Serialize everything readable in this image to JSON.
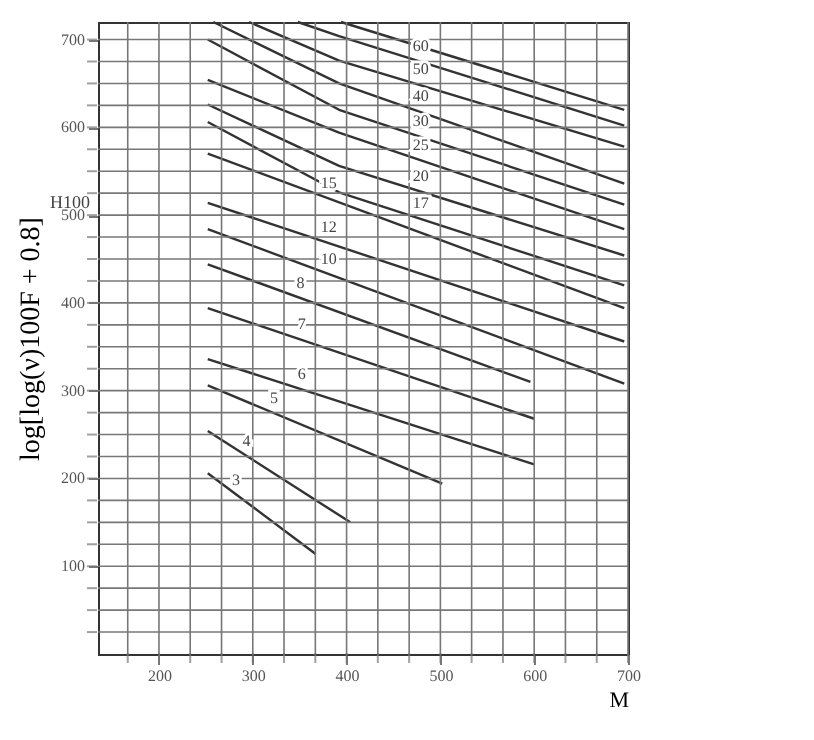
{
  "chart_data": {
    "type": "line",
    "xlabel": "M",
    "ylabel": "log[log(ν)100F + 0.8]",
    "annotations": [
      "H100"
    ],
    "xlim": [
      135,
      700
    ],
    "ylim": [
      0,
      720
    ],
    "xticks": [
      {
        "value": 166.7,
        "label": null
      },
      200,
      {
        "value": 233.3,
        "label": null
      },
      {
        "value": 266.7,
        "label": null
      },
      300,
      {
        "value": 333.3,
        "label": null
      },
      {
        "value": 366.7,
        "label": null
      },
      400,
      {
        "value": 433.3,
        "label": null
      },
      {
        "value": 466.7,
        "label": null
      },
      500,
      {
        "value": 533.3,
        "label": null
      },
      {
        "value": 566.7,
        "label": null
      },
      600,
      {
        "value": 633.3,
        "label": null
      },
      {
        "value": 666.7,
        "label": null
      },
      700
    ],
    "yticks": [
      {
        "value": 25,
        "label": null
      },
      {
        "value": 50,
        "label": null
      },
      {
        "value": 75,
        "label": null
      },
      100,
      {
        "value": 125,
        "label": null
      },
      {
        "value": 150,
        "label": null
      },
      {
        "value": 175,
        "label": null
      },
      200,
      {
        "value": 225,
        "label": null
      },
      {
        "value": 250,
        "label": null
      },
      {
        "value": 275,
        "label": null
      },
      300,
      {
        "value": 325,
        "label": null
      },
      {
        "value": 350,
        "label": null
      },
      {
        "value": 375,
        "label": null
      },
      400,
      {
        "value": 425,
        "label": null
      },
      {
        "value": 450,
        "label": null
      },
      {
        "value": 475,
        "label": null
      },
      500,
      {
        "value": 525,
        "label": null
      },
      {
        "value": 550,
        "label": null
      },
      {
        "value": 575,
        "label": null
      },
      600,
      {
        "value": 625,
        "label": null
      },
      {
        "value": 650,
        "label": null
      },
      {
        "value": 675,
        "label": null
      },
      700
    ],
    "grid": true,
    "legend": false,
    "marker": "none",
    "line_style": "solid",
    "series": [
      {
        "color": "#333333",
        "x": [
          394,
          696
        ],
        "values": [
          720,
          620
        ]
      },
      {
        "name": "60",
        "color": "#333333",
        "x": [
          348,
          392,
          696
        ],
        "values": [
          720,
          704,
          602
        ]
      },
      {
        "name": "50",
        "color": "#333333",
        "x": [
          296,
          392,
          696
        ],
        "values": [
          720,
          676,
          578
        ]
      },
      {
        "name": "40",
        "color": "#333333",
        "x": [
          258,
          392,
          696
        ],
        "values": [
          720,
          650,
          536
        ]
      },
      {
        "name": "30",
        "color": "#333333",
        "x": [
          252,
          392,
          696
        ],
        "values": [
          700,
          620,
          512
        ]
      },
      {
        "name": "25",
        "color": "#333333",
        "x": [
          252,
          392,
          696
        ],
        "values": [
          654,
          594,
          484
        ]
      },
      {
        "name": "20",
        "color": "#333333",
        "x": [
          252,
          392,
          696
        ],
        "values": [
          626,
          556,
          454
        ]
      },
      {
        "name": "17",
        "color": "#333333",
        "x": [
          252,
          392,
          696
        ],
        "values": [
          606,
          526,
          420
        ]
      },
      {
        "name": "15",
        "color": "#333333",
        "x": [
          252,
          696
        ],
        "values": [
          570,
          394
        ]
      },
      {
        "name": "12",
        "color": "#333333",
        "x": [
          252,
          696
        ],
        "values": [
          514,
          356
        ]
      },
      {
        "name": "10",
        "color": "#333333",
        "x": [
          252,
          696
        ],
        "values": [
          484,
          308
        ]
      },
      {
        "name": "8",
        "color": "#333333",
        "x": [
          252,
          596
        ],
        "values": [
          444,
          310
        ]
      },
      {
        "name": "7",
        "color": "#333333",
        "x": [
          252,
          600
        ],
        "values": [
          394,
          268
        ]
      },
      {
        "name": "6",
        "color": "#333333",
        "x": [
          252,
          600
        ],
        "values": [
          336,
          216
        ]
      },
      {
        "name": "5",
        "color": "#333333",
        "x": [
          252,
          502
        ],
        "values": [
          306,
          194
        ]
      },
      {
        "name": "4",
        "color": "#333333",
        "x": [
          252,
          404
        ],
        "values": [
          254,
          150
        ]
      },
      {
        "name": "3",
        "color": "#333333",
        "x": [
          252,
          367
        ],
        "values": [
          206,
          114
        ]
      }
    ]
  }
}
